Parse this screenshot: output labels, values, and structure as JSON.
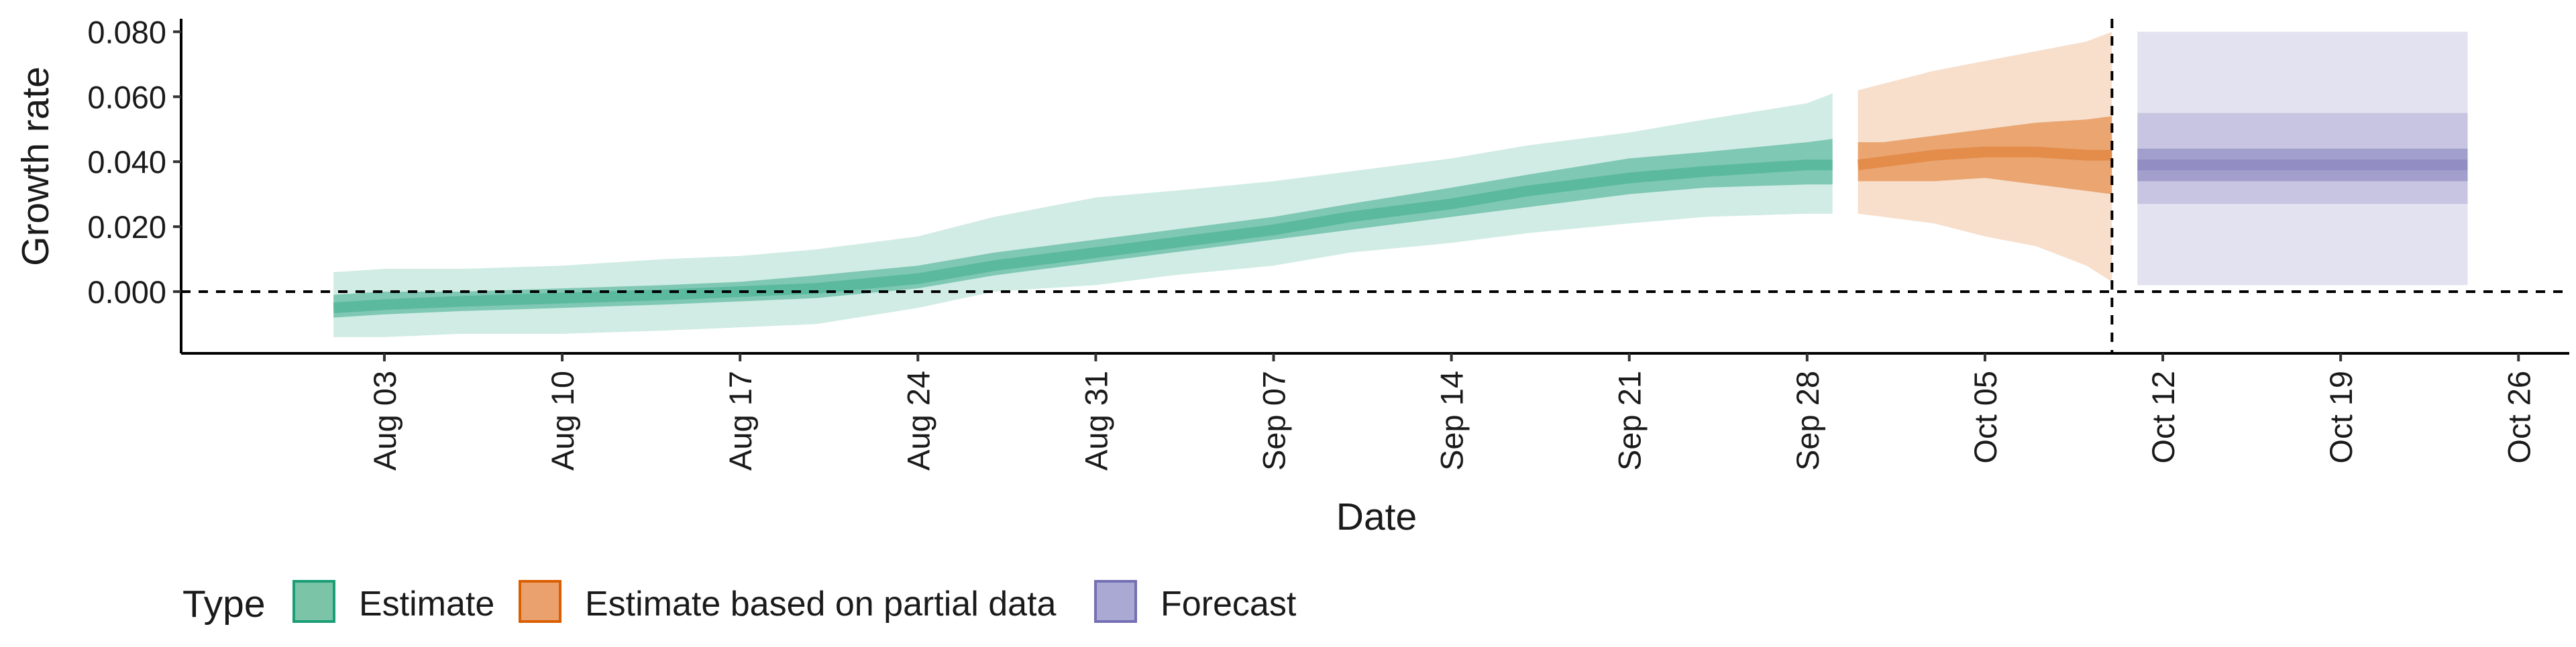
{
  "chart_data": {
    "type": "area",
    "xlabel": "Date",
    "ylabel": "Growth rate",
    "x_range": [
      "2025-07-26",
      "2025-10-28"
    ],
    "ylim": [
      -0.019,
      0.084
    ],
    "y_ticks": [
      0.0,
      0.02,
      0.04,
      0.06,
      0.08
    ],
    "y_tick_labels": [
      "0.000",
      "0.020",
      "0.040",
      "0.060",
      "0.080"
    ],
    "x_ticks": [
      "2025-08-03",
      "2025-08-10",
      "2025-08-17",
      "2025-08-24",
      "2025-08-31",
      "2025-09-07",
      "2025-09-14",
      "2025-09-21",
      "2025-09-28",
      "2025-10-05",
      "2025-10-12",
      "2025-10-19",
      "2025-10-26"
    ],
    "x_tick_labels": [
      "Aug 03",
      "Aug 10",
      "Aug 17",
      "Aug 24",
      "Aug 31",
      "Sep 07",
      "Sep 14",
      "Sep 21",
      "Sep 28",
      "Oct 05",
      "Oct 12",
      "Oct 19",
      "Oct 26"
    ],
    "reference_lines": {
      "horizontal_y": 0.0,
      "vertical_x": "2025-10-10"
    },
    "grid": false,
    "legend": {
      "title": "Type",
      "position": "bottom-left",
      "entries": [
        {
          "label": "Estimate",
          "fill": "#7cc4a8",
          "stroke": "#1b9e77"
        },
        {
          "label": "Estimate based on partial data",
          "fill": "#eba16e",
          "stroke": "#d95f02"
        },
        {
          "label": "Forecast",
          "fill": "#a9a9d3",
          "stroke": "#7570b3"
        }
      ]
    },
    "series": [
      {
        "name": "Estimate",
        "color": "#1b9e77",
        "x": [
          "2025-08-01",
          "2025-08-03",
          "2025-08-06",
          "2025-08-10",
          "2025-08-14",
          "2025-08-17",
          "2025-08-20",
          "2025-08-24",
          "2025-08-27",
          "2025-08-31",
          "2025-09-03",
          "2025-09-07",
          "2025-09-10",
          "2025-09-14",
          "2025-09-17",
          "2025-09-21",
          "2025-09-24",
          "2025-09-28",
          "2025-09-29"
        ],
        "median": [
          -0.005,
          -0.004,
          -0.003,
          -0.002,
          -0.001,
          0.0,
          0.001,
          0.004,
          0.008,
          0.012,
          0.015,
          0.019,
          0.023,
          0.027,
          0.031,
          0.035,
          0.037,
          0.039,
          0.039
        ],
        "inner_lower": [
          -0.008,
          -0.007,
          -0.006,
          -0.005,
          -0.004,
          -0.003,
          -0.002,
          0.001,
          0.005,
          0.009,
          0.012,
          0.016,
          0.019,
          0.023,
          0.026,
          0.03,
          0.032,
          0.033,
          0.033
        ],
        "inner_upper": [
          -0.001,
          0.0,
          0.0,
          0.001,
          0.002,
          0.003,
          0.005,
          0.008,
          0.012,
          0.016,
          0.019,
          0.023,
          0.027,
          0.032,
          0.036,
          0.041,
          0.043,
          0.046,
          0.047
        ],
        "outer_lower": [
          -0.014,
          -0.014,
          -0.013,
          -0.013,
          -0.012,
          -0.011,
          -0.01,
          -0.005,
          0.0,
          0.002,
          0.005,
          0.008,
          0.012,
          0.015,
          0.018,
          0.021,
          0.023,
          0.024,
          0.024
        ],
        "outer_upper": [
          0.006,
          0.007,
          0.007,
          0.008,
          0.01,
          0.011,
          0.013,
          0.017,
          0.023,
          0.029,
          0.031,
          0.034,
          0.037,
          0.041,
          0.045,
          0.049,
          0.053,
          0.058,
          0.061
        ]
      },
      {
        "name": "Estimate based on partial data",
        "color": "#d95f02",
        "x": [
          "2025-09-30",
          "2025-10-01",
          "2025-10-03",
          "2025-10-05",
          "2025-10-07",
          "2025-10-09",
          "2025-10-10"
        ],
        "median": [
          0.039,
          0.04,
          0.042,
          0.043,
          0.043,
          0.042,
          0.042
        ],
        "inner_lower": [
          0.034,
          0.034,
          0.034,
          0.035,
          0.033,
          0.031,
          0.03
        ],
        "inner_upper": [
          0.046,
          0.046,
          0.048,
          0.05,
          0.052,
          0.053,
          0.054
        ],
        "outer_lower": [
          0.024,
          0.023,
          0.021,
          0.017,
          0.014,
          0.008,
          0.003
        ],
        "outer_upper": [
          0.062,
          0.064,
          0.068,
          0.071,
          0.074,
          0.077,
          0.08
        ]
      },
      {
        "name": "Forecast",
        "color": "#7570b3",
        "x": [
          "2025-10-11",
          "2025-10-24"
        ],
        "median": [
          0.039,
          0.039
        ],
        "inner_lower": [
          0.034,
          0.034
        ],
        "inner_upper": [
          0.044,
          0.044
        ],
        "mid_lower": [
          0.027,
          0.027
        ],
        "mid_upper": [
          0.055,
          0.055
        ],
        "outer_lower": [
          0.002,
          0.002
        ],
        "outer_upper": [
          0.08,
          0.08
        ]
      }
    ]
  }
}
